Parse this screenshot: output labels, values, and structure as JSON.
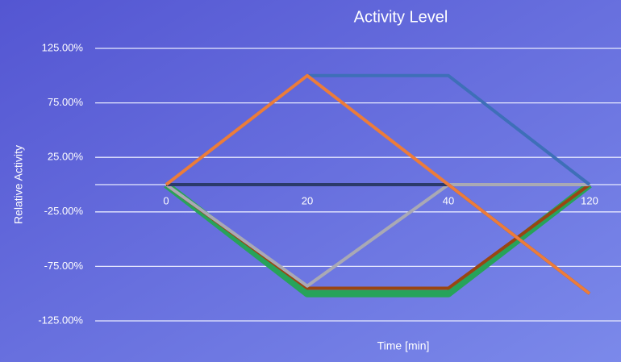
{
  "chart_data": {
    "type": "line",
    "title": "Activity Level",
    "x_label": "Time [min]",
    "y_label": "Relative Activity",
    "categories": [
      "0",
      "20",
      "40",
      "120"
    ],
    "series": [
      {
        "color": "#27a35a",
        "values": [
          0,
          -100,
          -100,
          0
        ]
      },
      {
        "color": "#9a4512",
        "values": [
          0,
          -95,
          -95,
          0
        ]
      },
      {
        "color": "#a9a9b4",
        "values": [
          0,
          -93,
          0,
          0
        ]
      },
      {
        "color": "#2b3a6a",
        "values": [
          0,
          0,
          0,
          -100
        ]
      },
      {
        "color": "#3e6fb8",
        "values": [
          0,
          100,
          100,
          0
        ]
      },
      {
        "color": "#ec7c3a",
        "values": [
          0,
          100,
          0,
          -100
        ]
      }
    ],
    "ylim": [
      -125,
      125
    ],
    "yticks": [
      {
        "value": 125,
        "label": "125.00%"
      },
      {
        "value": 75,
        "label": "75.00%"
      },
      {
        "value": 25,
        "label": "25.00%"
      },
      {
        "value": -25,
        "label": "-25.00%"
      },
      {
        "value": -75,
        "label": "-75.00%"
      },
      {
        "value": -125,
        "label": "-125.00%"
      }
    ],
    "grid": true
  }
}
